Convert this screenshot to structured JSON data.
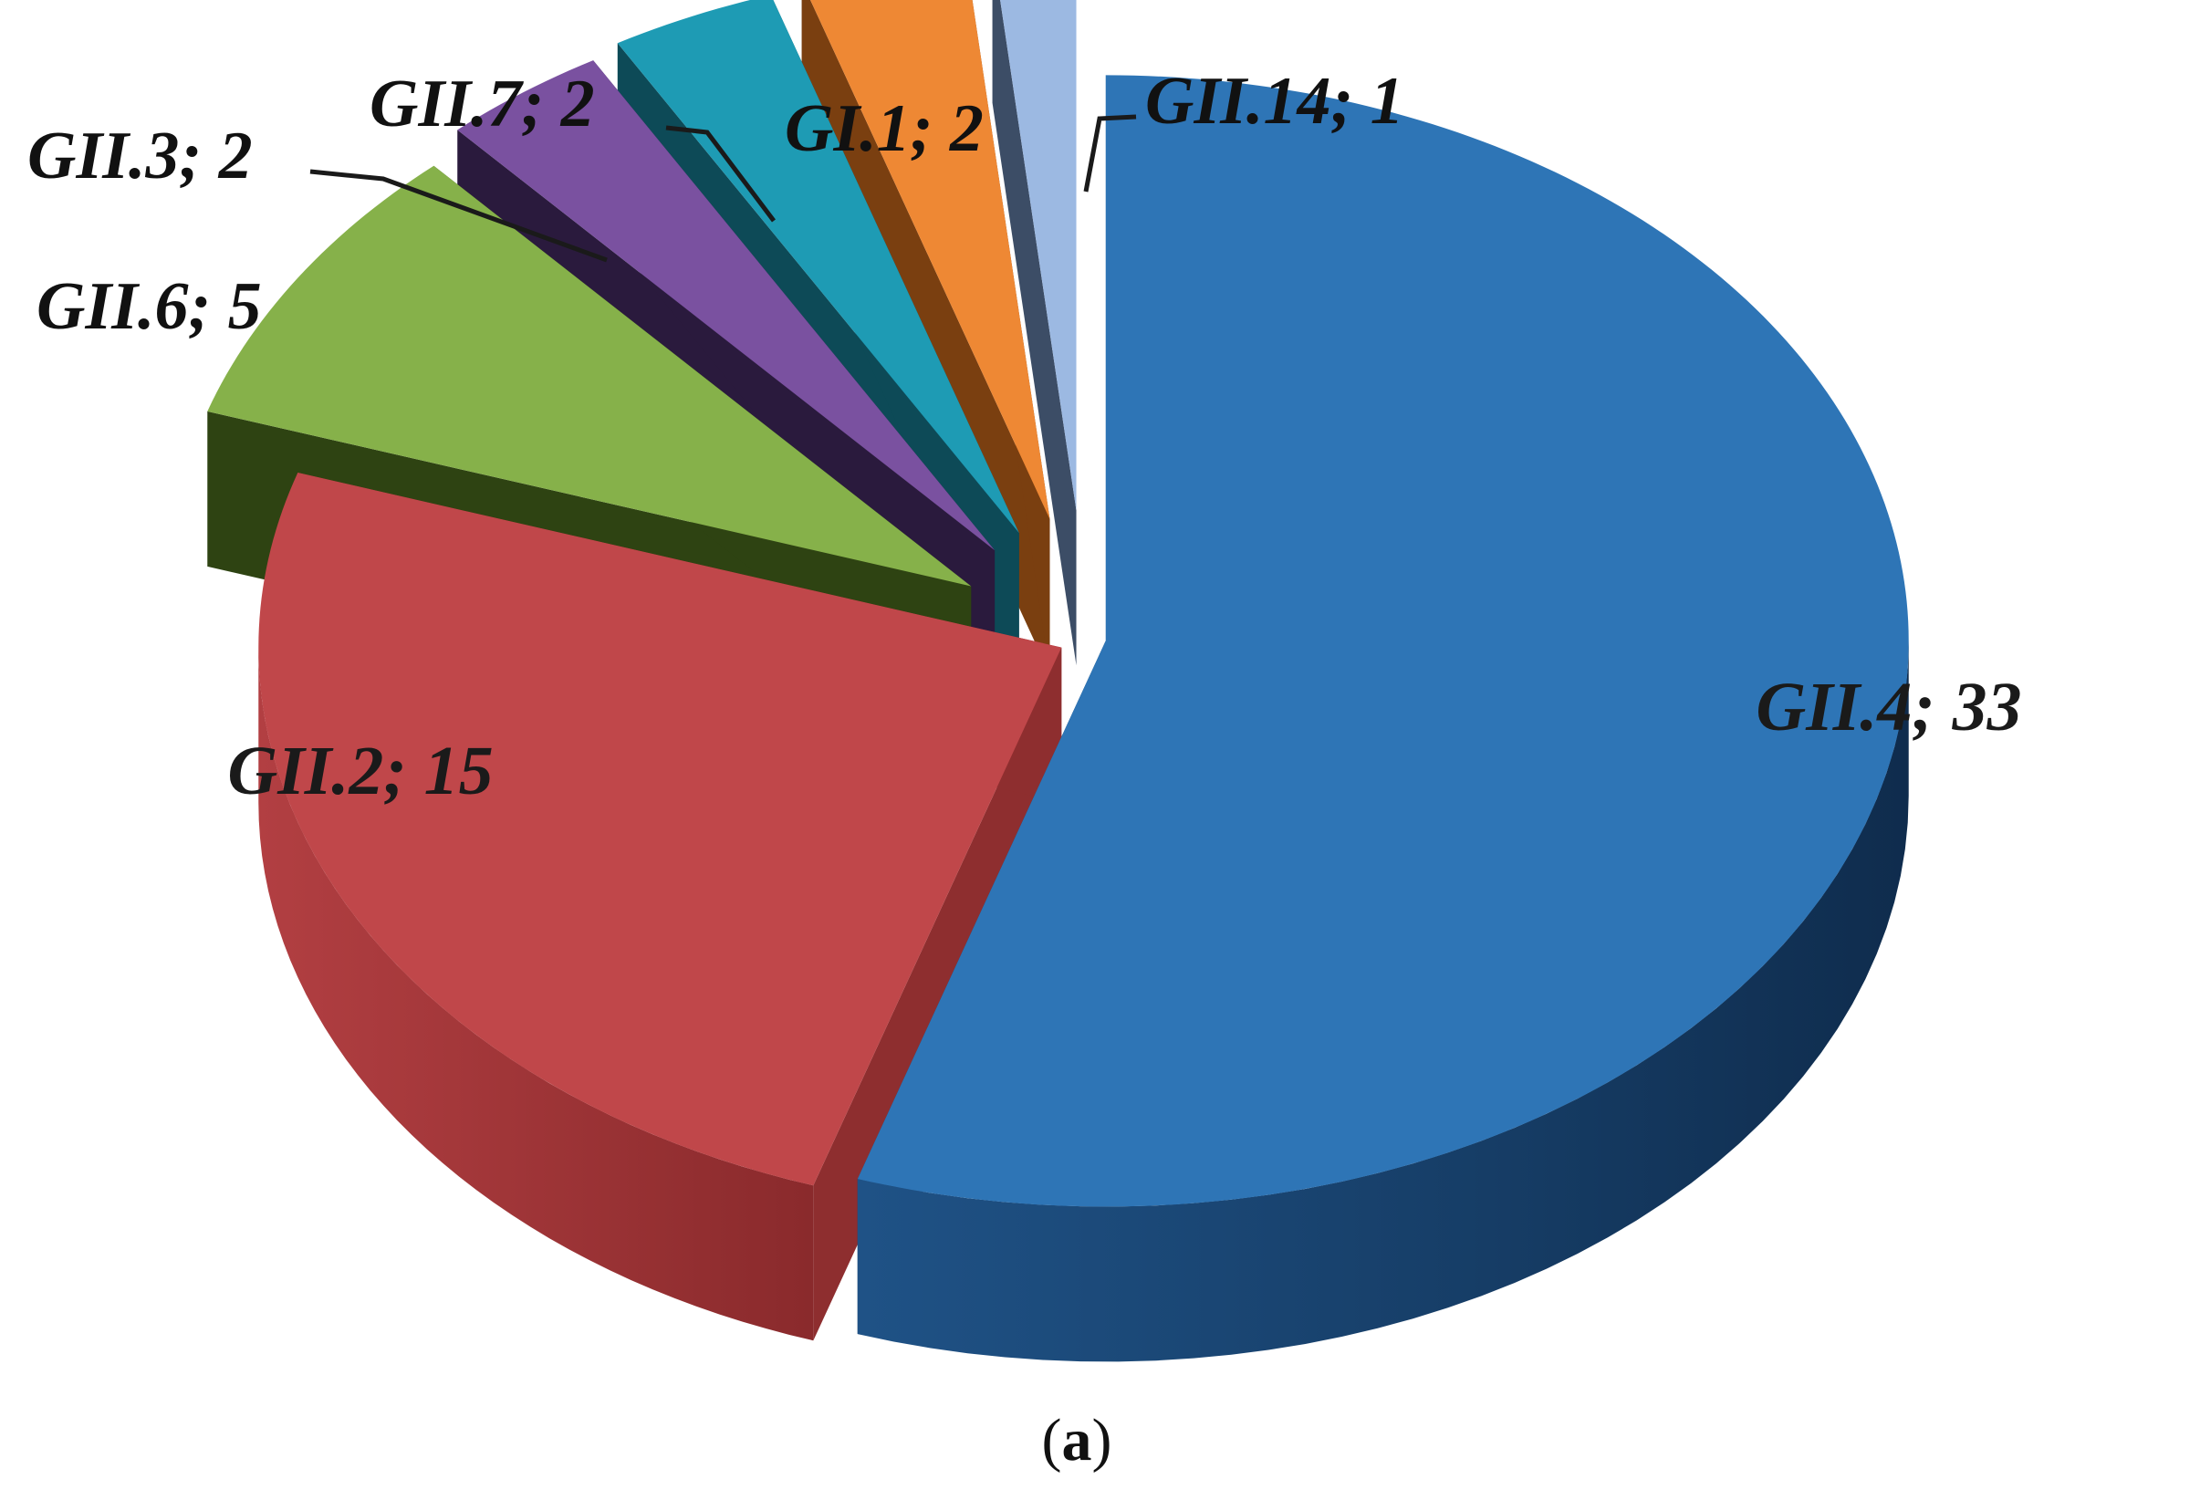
{
  "chart_data": {
    "type": "pie",
    "title": "",
    "labels_format": "{name}; {value}",
    "slices": [
      {
        "name": "GII.4",
        "value": 33,
        "label": "GII.4; 33",
        "color": "#2e75b6",
        "side_color": "#173a60"
      },
      {
        "name": "GII.2",
        "value": 15,
        "label": "GII.2; 15",
        "color": "#c0474a",
        "side_color": "#8e2e2f"
      },
      {
        "name": "GII.6",
        "value": 5,
        "label": "GII.6; 5",
        "color": "#86b14a",
        "side_color": "#2e4312"
      },
      {
        "name": "GII.3",
        "value": 2,
        "label": "GII.3; 2",
        "color": "#7a51a0",
        "side_color": "#2a1a3d"
      },
      {
        "name": "GII.7",
        "value": 2,
        "label": "GII.7; 2",
        "color": "#1e9bb4",
        "side_color": "#0d4a57"
      },
      {
        "name": "GI.1",
        "value": 2,
        "label": "GI.1; 2",
        "color": "#ee8834",
        "side_color": "#7a3f10"
      },
      {
        "name": "GII.14",
        "value": 1,
        "label": "GII.14; 1",
        "color": "#9cb9e2",
        "side_color": "#3c4d66"
      }
    ],
    "style": "3d-exploded",
    "legend": "none"
  },
  "panel": {
    "open": "(",
    "letter": "a",
    "close": ")"
  }
}
